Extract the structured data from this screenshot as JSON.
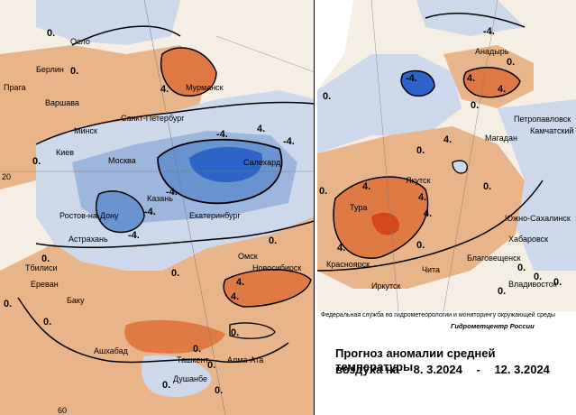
{
  "colors": {
    "warm_light": "#e8b489",
    "warm": "#e07a45",
    "warm_dark": "#d4471c",
    "cold_light": "#cdd8ea",
    "cold": "#9db7dc",
    "cold_mid": "#6a94cf",
    "cold_dark": "#2e64c8",
    "land_neutral": "#f5eee4"
  },
  "left_map": {
    "cities": [
      "Осло",
      "Берлин",
      "Прага",
      "Варшава",
      "Мурманск",
      "Санкт-Петербург",
      "Минск",
      "Киев",
      "Москва",
      "Казань",
      "Салехард",
      "Екатеринбург",
      "Ростов-на-Дону",
      "Астрахань",
      "Тбилиси",
      "Ереван",
      "Баку",
      "Омск",
      "Новосибирск",
      "Ашхабад",
      "Ташкент",
      "Алма-Ата",
      "Душанбе"
    ],
    "isolines": [
      "0.",
      "0.",
      "4.",
      "0.",
      "-4.",
      "4.",
      "-4.",
      "-4.",
      "-4.",
      "-4.",
      "0.",
      "0.",
      "0.",
      "4.",
      "4.",
      "0.",
      "0.",
      "0.",
      "0.",
      "0.",
      "0.",
      "0."
    ],
    "grid_labels": [
      "20",
      "60"
    ]
  },
  "right_map": {
    "cities": [
      "Анадырь",
      "Петропавловск",
      "Камчатский",
      "Магадан",
      "Якутск",
      "Тура",
      "Красноярск",
      "Иркутск",
      "Чита",
      "Благовещенск",
      "Хабаровск",
      "Южно-Сахалинск",
      "Владивосток"
    ],
    "isolines": [
      "-4.",
      "-4.",
      "4.",
      "4.",
      "0.",
      "4.",
      "0.",
      "4.",
      "0.",
      "4.",
      "4.",
      "0.",
      "4.",
      "0.",
      "0.",
      "0.",
      "0.",
      "0.",
      "0.",
      "0."
    ]
  },
  "caption": {
    "agency": "Федеральная служба по гидрометеорологии и мониторингу окружающей среды",
    "org": "Гидрометцентр России",
    "title": "Прогноз аномалии средней температуры",
    "subtitle": "воздуха на",
    "date_from": "8. 3.2024",
    "date_sep": "-",
    "date_to": "12. 3.2024"
  }
}
